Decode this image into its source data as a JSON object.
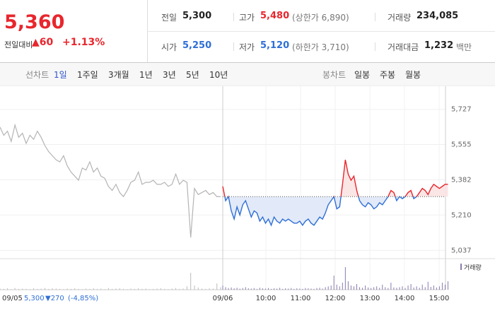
{
  "header": {
    "price": "5,360",
    "change_label": "전일대비",
    "change": "▲60",
    "change_pct": "+1.13%",
    "stats": [
      {
        "label": "전일",
        "value": "5,300",
        "note": null,
        "color": "#222"
      },
      {
        "label": "고가",
        "value": "5,480",
        "note": "(상한가 6,890)",
        "color": "#e8262d"
      },
      {
        "label": "거래량",
        "value": "234,085",
        "note": null,
        "color": "#222"
      },
      {
        "label": "시가",
        "value": "5,250",
        "note": null,
        "color": "#2f6fd6"
      },
      {
        "label": "저가",
        "value": "5,120",
        "note": "(하한가 3,710)",
        "color": "#2f6fd6"
      },
      {
        "label": "거래대금",
        "value": "1,232",
        "note": "백만",
        "color": "#222"
      }
    ]
  },
  "tabs": {
    "line_label": "선차트",
    "line_options": [
      "1일",
      "1주일",
      "3개월",
      "1년",
      "3년",
      "5년",
      "10년"
    ],
    "active": 0,
    "candle_label": "봉차트",
    "candle_options": [
      "일봉",
      "주봉",
      "월봉"
    ]
  },
  "chart_data": {
    "type": "line",
    "ylim": [
      5000,
      5840
    ],
    "yticks": [
      {
        "value": 5727,
        "label": "5,727"
      },
      {
        "value": 5555,
        "label": "5,555"
      },
      {
        "value": 5382,
        "label": "5,382"
      },
      {
        "value": 5210,
        "label": "5,210"
      },
      {
        "value": 5037,
        "label": "5,037"
      }
    ],
    "baseline": 5300,
    "up_color": "#e8262d",
    "down_color": "#2f6fd6",
    "xlabels": [
      "09/06",
      "10:00",
      "11:00",
      "12:00",
      "13:00",
      "14:00",
      "15:00"
    ],
    "series": [
      {
        "name": "09/05",
        "color": "#b4b4b4",
        "values": [
          5640,
          5600,
          5620,
          5570,
          5650,
          5590,
          5610,
          5560,
          5600,
          5580,
          5620,
          5590,
          5550,
          5520,
          5500,
          5480,
          5470,
          5500,
          5450,
          5420,
          5400,
          5380,
          5440,
          5430,
          5470,
          5420,
          5440,
          5400,
          5390,
          5350,
          5330,
          5360,
          5320,
          5300,
          5330,
          5370,
          5380,
          5420,
          5360,
          5370,
          5370,
          5380,
          5360,
          5360,
          5370,
          5350,
          5360,
          5410,
          5360,
          5380,
          5370,
          5100,
          5340,
          5310,
          5320,
          5330,
          5310,
          5320,
          5300,
          5300
        ]
      },
      {
        "name": "09/06",
        "color": "#2f6fd6",
        "values": [
          5350,
          5280,
          5300,
          5230,
          5190,
          5250,
          5210,
          5260,
          5280,
          5240,
          5200,
          5230,
          5220,
          5180,
          5200,
          5170,
          5190,
          5160,
          5200,
          5180,
          5170,
          5190,
          5180,
          5190,
          5180,
          5170,
          5170,
          5180,
          5160,
          5180,
          5190,
          5170,
          5160,
          5180,
          5200,
          5190,
          5220,
          5260,
          5280,
          5300,
          5240,
          5250,
          5360,
          5480,
          5410,
          5380,
          5400,
          5330,
          5280,
          5260,
          5250,
          5270,
          5260,
          5240,
          5250,
          5270,
          5260,
          5280,
          5300,
          5330,
          5320,
          5280,
          5300,
          5290,
          5300,
          5320,
          5330,
          5290,
          5300,
          5320,
          5340,
          5330,
          5310,
          5340,
          5360,
          5350,
          5340,
          5350,
          5360,
          5360
        ]
      }
    ],
    "volume": {
      "name": "거래량",
      "color": "#8a7cb0",
      "ylim": [
        0,
        10000
      ],
      "series": [
        [
          400,
          300,
          500,
          200,
          600,
          300,
          400,
          300,
          200,
          500,
          300,
          400,
          600,
          300,
          500,
          400,
          300,
          200,
          400,
          300,
          500,
          300,
          200,
          400,
          300,
          500,
          300,
          400,
          200,
          600,
          300,
          400,
          500,
          300,
          200,
          400,
          300,
          500,
          300,
          400,
          200,
          300,
          400,
          500,
          300,
          200,
          400,
          600,
          300,
          400,
          1200,
          6000,
          1500,
          800,
          400,
          300,
          500,
          400,
          2200,
          900
        ],
        [
          1500,
          900,
          600,
          800,
          500,
          700,
          400,
          600,
          900,
          500,
          400,
          600,
          300,
          700,
          500,
          400,
          600,
          300,
          500,
          400,
          700,
          300,
          500,
          400,
          600,
          300,
          500,
          400,
          300,
          600,
          500,
          400,
          300,
          600,
          700,
          400,
          900,
          1200,
          1500,
          5000,
          1800,
          1200,
          2500,
          8000,
          3000,
          1500,
          1200,
          2000,
          900,
          700,
          1500,
          800,
          600,
          900,
          1200,
          700,
          1800,
          900,
          600,
          2500,
          800,
          700,
          900,
          1200,
          600,
          1500,
          2000,
          800,
          1200,
          700,
          1800,
          900,
          2800,
          1000,
          1500,
          800,
          1200,
          2500,
          1800,
          3000
        ]
      ]
    },
    "footer": {
      "date": "09/05",
      "close": "5,300",
      "change": "▼270",
      "pct": "(-4,85%)"
    }
  }
}
